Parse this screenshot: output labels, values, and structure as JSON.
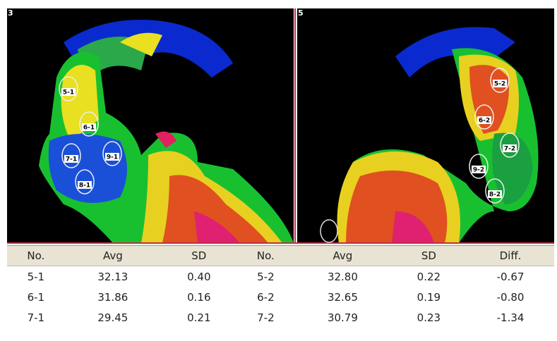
{
  "images": [
    {
      "label": "3",
      "rois": [
        "5-1",
        "6-1",
        "7-1",
        "9-1",
        "8-1"
      ]
    },
    {
      "label": "5",
      "rois": [
        "5-2",
        "6-2",
        "7-2",
        "9-2",
        "8-2"
      ]
    }
  ],
  "table": {
    "header": [
      "No.",
      "Avg",
      "SD",
      "No.",
      "Avg",
      "SD",
      "Diff."
    ],
    "rows": [
      [
        "5-1",
        "32.13",
        "0.40",
        "5-2",
        "32.80",
        "0.22",
        "-0.67"
      ],
      [
        "6-1",
        "31.86",
        "0.16",
        "6-2",
        "32.65",
        "0.19",
        "-0.80"
      ],
      [
        "7-1",
        "29.45",
        "0.21",
        "7-2",
        "30.79",
        "0.23",
        "-1.34"
      ]
    ]
  }
}
